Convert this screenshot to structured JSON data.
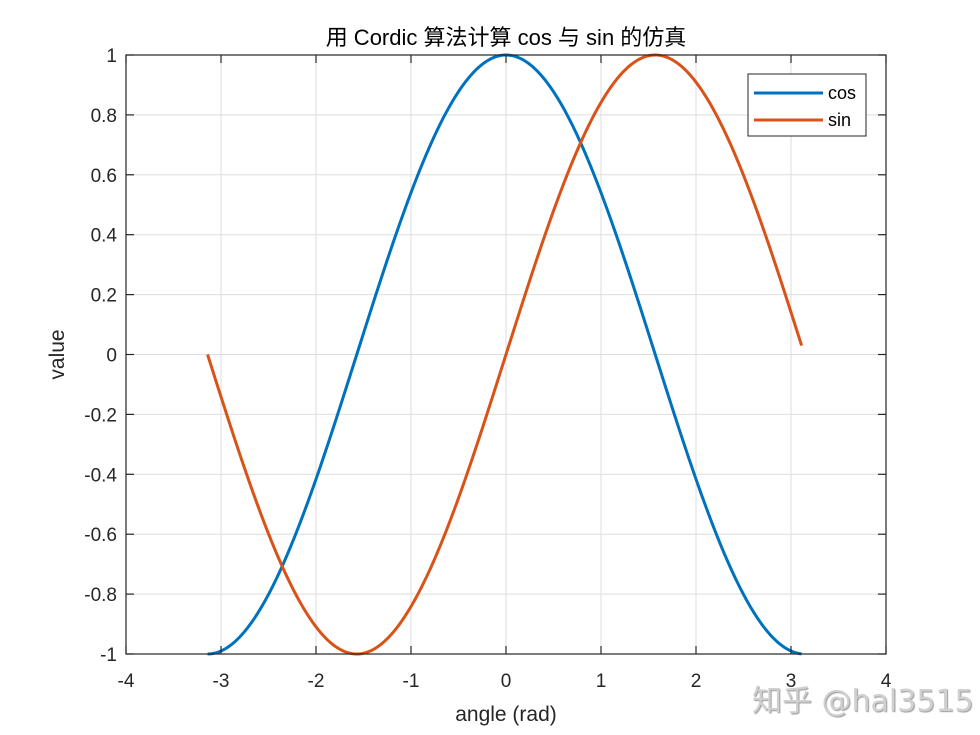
{
  "chart_data": {
    "type": "line",
    "title": "用 Cordic 算法计算 cos 与 sin 的仿真",
    "xlabel": "angle (rad)",
    "ylabel": "value",
    "xlim": [
      -4,
      4
    ],
    "ylim": [
      -1,
      1
    ],
    "xticks": [
      -4,
      -3,
      -2,
      -1,
      0,
      1,
      2,
      3,
      4
    ],
    "xtick_labels": [
      "-4",
      "-3",
      "-2",
      "-1",
      "0",
      "1",
      "2",
      "3",
      "4"
    ],
    "yticks": [
      -1,
      -0.8,
      -0.6,
      -0.4,
      -0.2,
      0,
      0.2,
      0.4,
      0.6,
      0.8,
      1
    ],
    "ytick_labels": [
      "-1",
      "-0.8",
      "-0.6",
      "-0.4",
      "-0.2",
      "0",
      "0.2",
      "0.4",
      "0.6",
      "0.8",
      "1"
    ],
    "grid": true,
    "legend_position": "northeast",
    "x_domain": [
      -3.1416,
      3.1116
    ],
    "series": [
      {
        "name": "cos",
        "color": "#0072BD",
        "x": [
          -3.1416,
          -2.8,
          -2.4,
          -2.0,
          -1.6,
          -1.2,
          -0.8,
          -0.4,
          0.0,
          0.4,
          0.8,
          1.2,
          1.6,
          2.0,
          2.4,
          2.8,
          3.1116
        ],
        "values": [
          -1.0,
          -0.942,
          -0.737,
          -0.416,
          -0.029,
          0.362,
          0.697,
          0.921,
          1.0,
          0.921,
          0.697,
          0.362,
          -0.029,
          -0.416,
          -0.737,
          -0.942,
          -1.0
        ]
      },
      {
        "name": "sin",
        "color": "#D95319",
        "x": [
          -3.1416,
          -2.8,
          -2.4,
          -2.0,
          -1.6,
          -1.2,
          -0.8,
          -0.4,
          0.0,
          0.4,
          0.8,
          1.2,
          1.6,
          2.0,
          2.4,
          2.8,
          3.1116
        ],
        "values": [
          0.0,
          -0.335,
          -0.675,
          -0.909,
          -1.0,
          -0.932,
          -0.717,
          -0.389,
          0.0,
          0.389,
          0.717,
          0.932,
          1.0,
          0.909,
          0.675,
          0.335,
          0.03
        ]
      }
    ]
  },
  "watermark": "知乎 @hal3515"
}
